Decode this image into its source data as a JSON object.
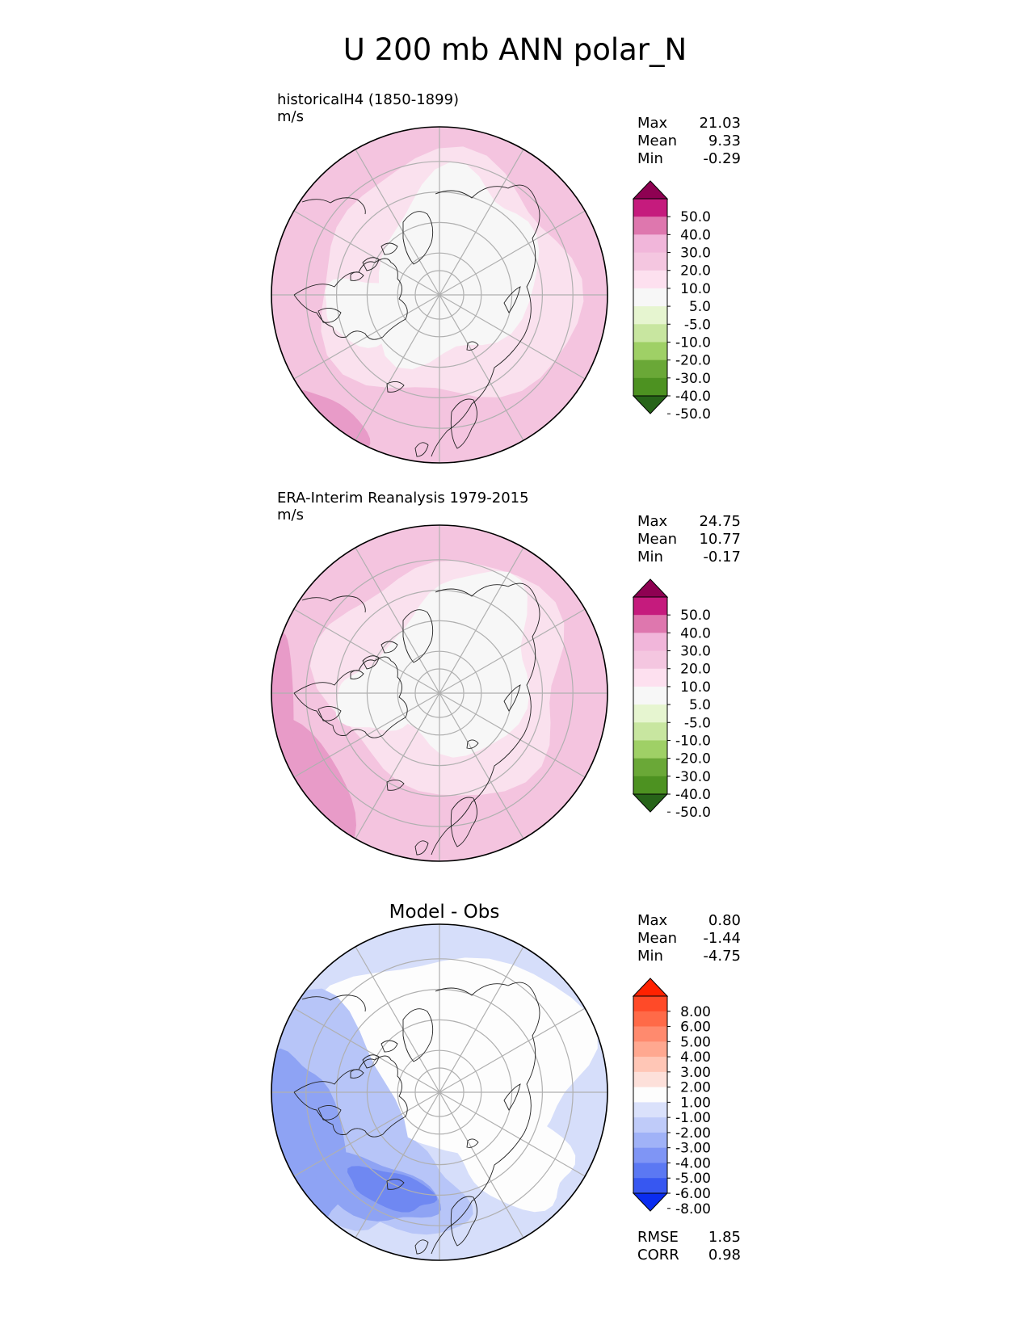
{
  "title": "U 200 mb ANN polar_N",
  "panels": [
    {
      "id": "model",
      "label_line1": "historicalH4 (1850-1899)",
      "label_line2": "m/s",
      "stats": [
        {
          "name": "Max",
          "value": "21.03"
        },
        {
          "name": "Mean",
          "value": "9.33"
        },
        {
          "name": "Min",
          "value": "-0.29"
        }
      ]
    },
    {
      "id": "obs",
      "label_line1": "ERA-Interim Reanalysis 1979-2015",
      "label_line2": "m/s",
      "stats": [
        {
          "name": "Max",
          "value": "24.75"
        },
        {
          "name": "Mean",
          "value": "10.77"
        },
        {
          "name": "Min",
          "value": "-0.17"
        }
      ]
    },
    {
      "id": "diff",
      "center_title": "Model - Obs",
      "stats": [
        {
          "name": "Max",
          "value": "0.80"
        },
        {
          "name": "Mean",
          "value": "-1.44"
        },
        {
          "name": "Min",
          "value": "-4.75"
        }
      ],
      "extra_stats": [
        {
          "name": "RMSE",
          "value": "1.85"
        },
        {
          "name": "CORR",
          "value": "0.98"
        }
      ]
    }
  ],
  "colorbars": {
    "field": {
      "labels": [
        "50.0",
        "40.0",
        "30.0",
        "20.0",
        "10.0",
        "5.0",
        "-5.0",
        "-10.0",
        "-20.0",
        "-30.0",
        "-40.0",
        "-50.0"
      ],
      "colors": [
        "#8e0152",
        "#c51b7d",
        "#de77ae",
        "#f1b6da",
        "#f4c6e0",
        "#fde0ef",
        "#f7f7f7",
        "#e6f5d0",
        "#c8e6a0",
        "#9fd066",
        "#6aa837",
        "#4d9221",
        "#276419"
      ]
    },
    "diff": {
      "labels": [
        "8.00",
        "6.00",
        "5.00",
        "4.00",
        "3.00",
        "2.00",
        "1.00",
        "-1.00",
        "-2.00",
        "-3.00",
        "-4.00",
        "-5.00",
        "-6.00",
        "-8.00"
      ],
      "colors": [
        "#ff2200",
        "#ff4a28",
        "#ff6a48",
        "#ff8a6e",
        "#ffa890",
        "#ffc6b6",
        "#fde0da",
        "#fdfdfd",
        "#dae1fb",
        "#bfcbf9",
        "#a0b2f7",
        "#7f95f5",
        "#5b78f3",
        "#3757f1",
        "#0a2cf0"
      ]
    }
  },
  "field_colors": {
    "light_pink": "#fae1ee",
    "pink": "#f4c4df",
    "mid_pink": "#e89bc8",
    "white_grey": "#f7f7f7",
    "diff_light_blue": "#d6defa",
    "diff_blue": "#b7c5f8",
    "diff_mid_blue": "#8ea3f4",
    "diff_dark_blue": "#6f88f2"
  }
}
